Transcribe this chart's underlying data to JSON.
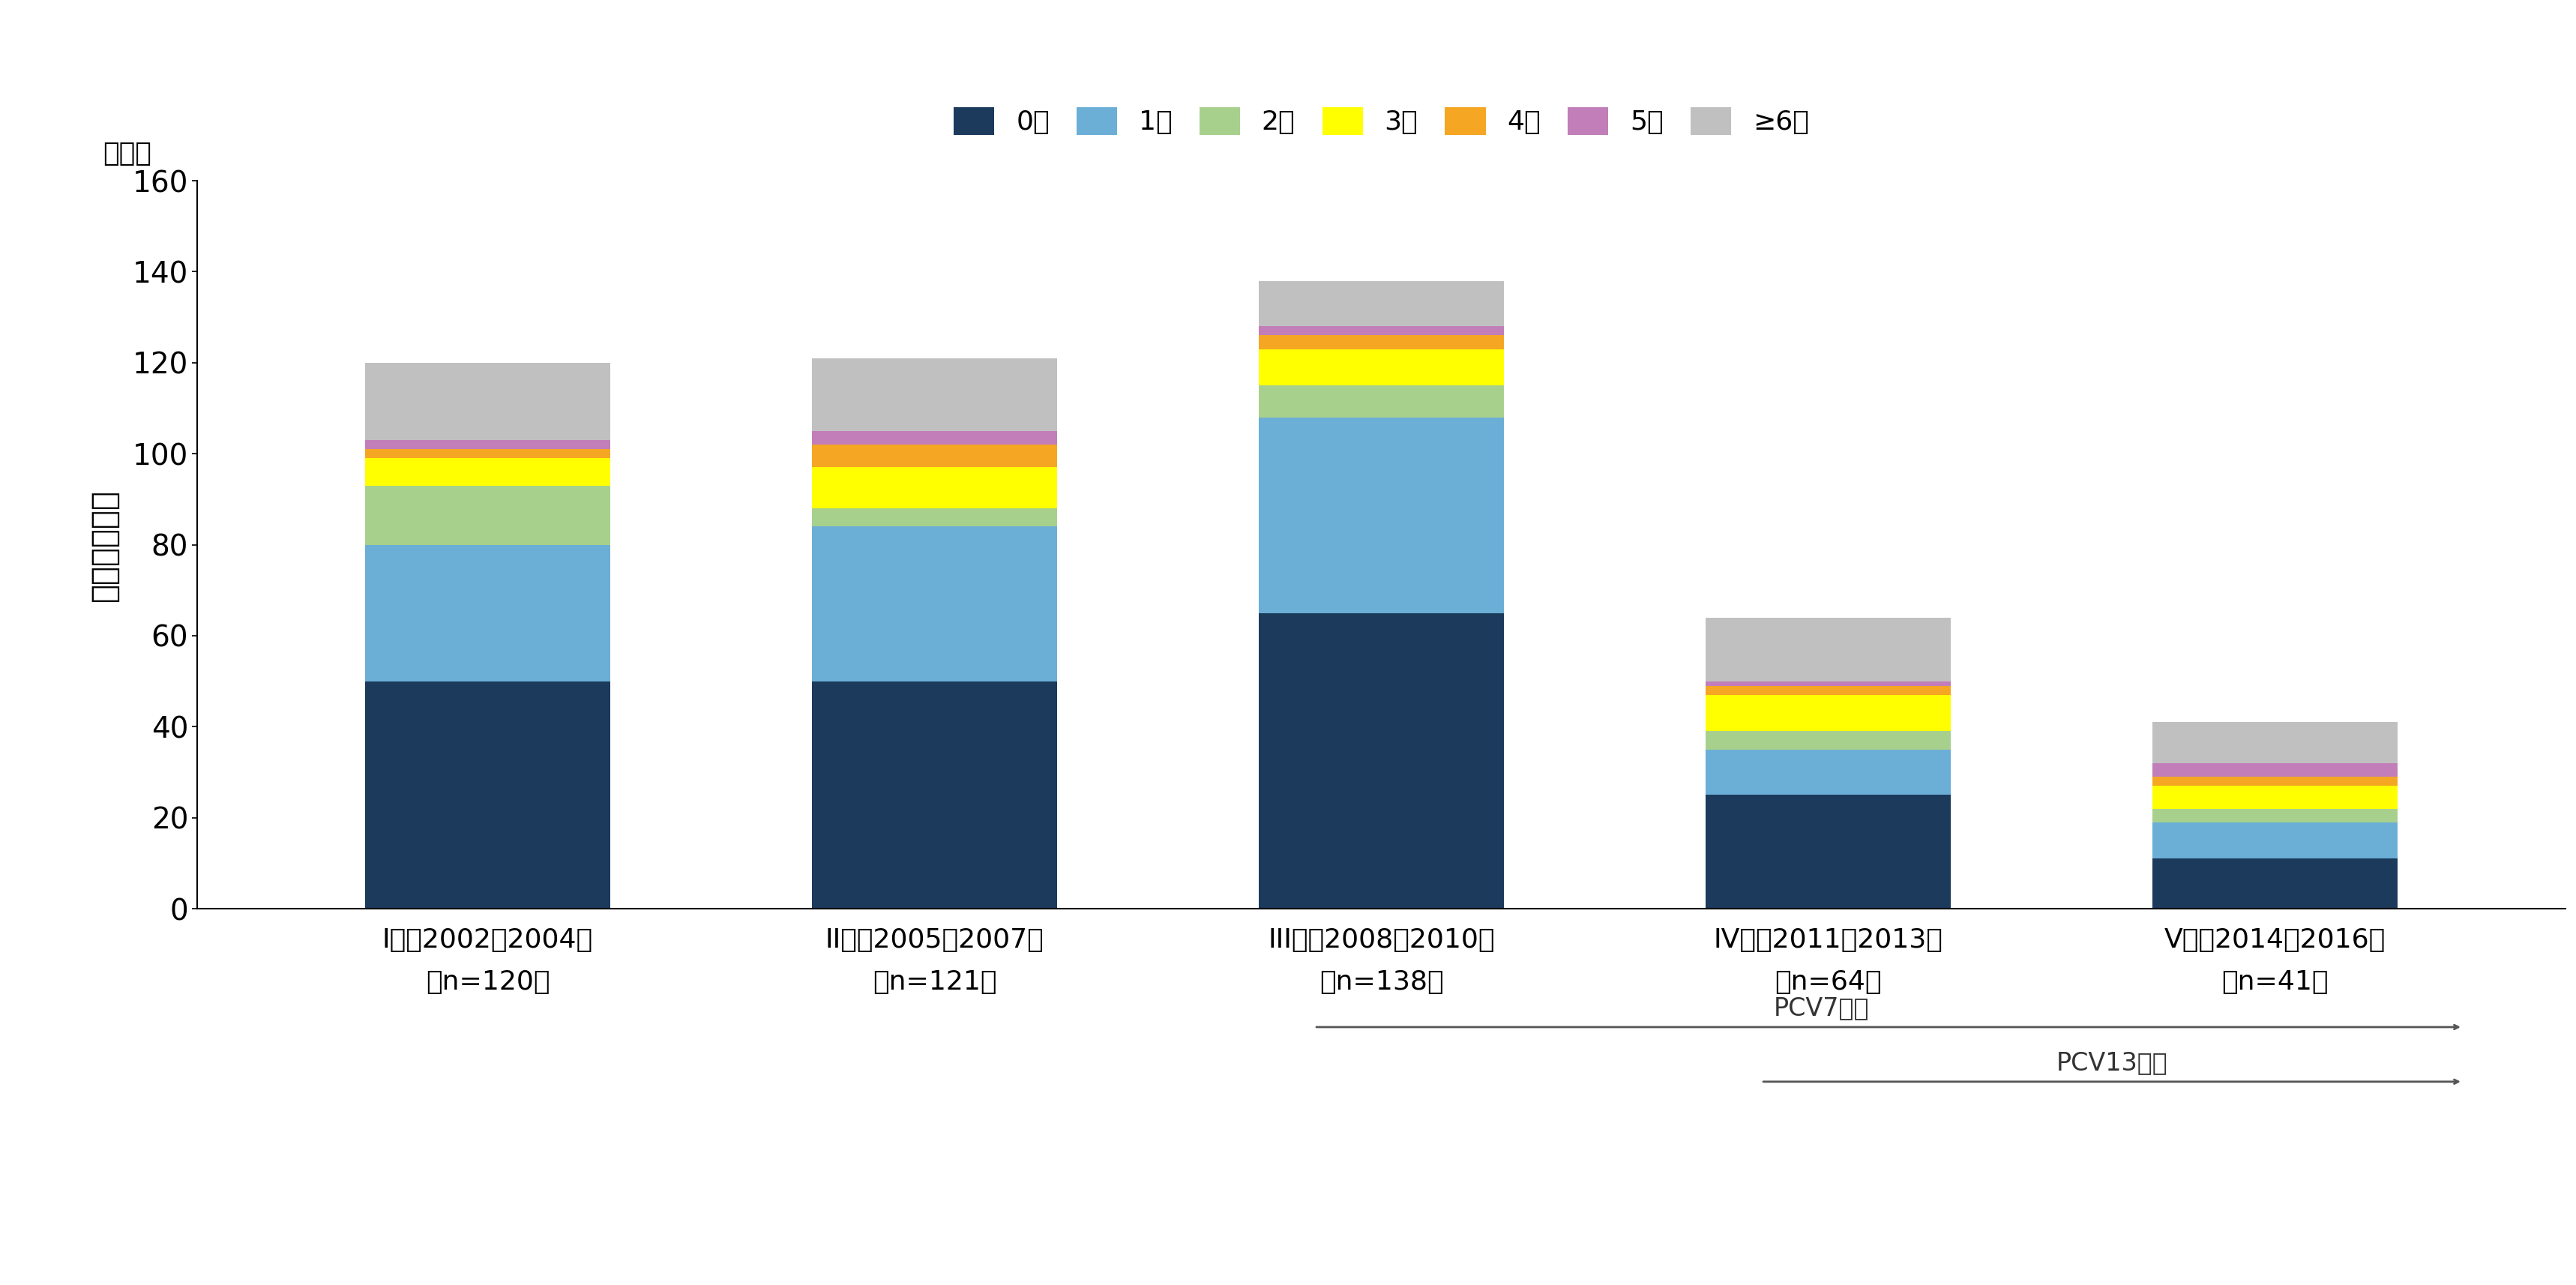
{
  "categories": [
    "I期：2002～2004年\n（n=120）",
    "II期：2005～2007年\n（n=121）",
    "III期：2008～2010年\n（n=138）",
    "IV期：2011～2013年\n（n=64）",
    "V期：2014～2016年\n（n=41）"
  ],
  "age_labels": [
    "0歳",
    "1歳",
    "2歳",
    "3歳",
    "4歳",
    "5歳",
    "≥6歳"
  ],
  "colors": [
    "#1b3a5c",
    "#6baed6",
    "#a8d08d",
    "#ffff00",
    "#f5a623",
    "#c17eb8",
    "#c0c0c0"
  ],
  "data": [
    [
      50,
      30,
      13,
      6,
      2,
      2,
      17
    ],
    [
      50,
      34,
      4,
      9,
      5,
      3,
      16
    ],
    [
      65,
      43,
      7,
      8,
      3,
      2,
      10
    ],
    [
      25,
      10,
      4,
      8,
      2,
      1,
      14
    ],
    [
      11,
      8,
      3,
      5,
      2,
      3,
      9
    ]
  ],
  "ylabel_top": "（例）",
  "ylim": [
    0,
    160
  ],
  "yticks": [
    0,
    20,
    40,
    60,
    80,
    100,
    120,
    140,
    160
  ],
  "pcv7_label": "PCV7導入",
  "pcv13_label": "PCV13導入",
  "background_color": "#ffffff",
  "bar_width": 0.55
}
